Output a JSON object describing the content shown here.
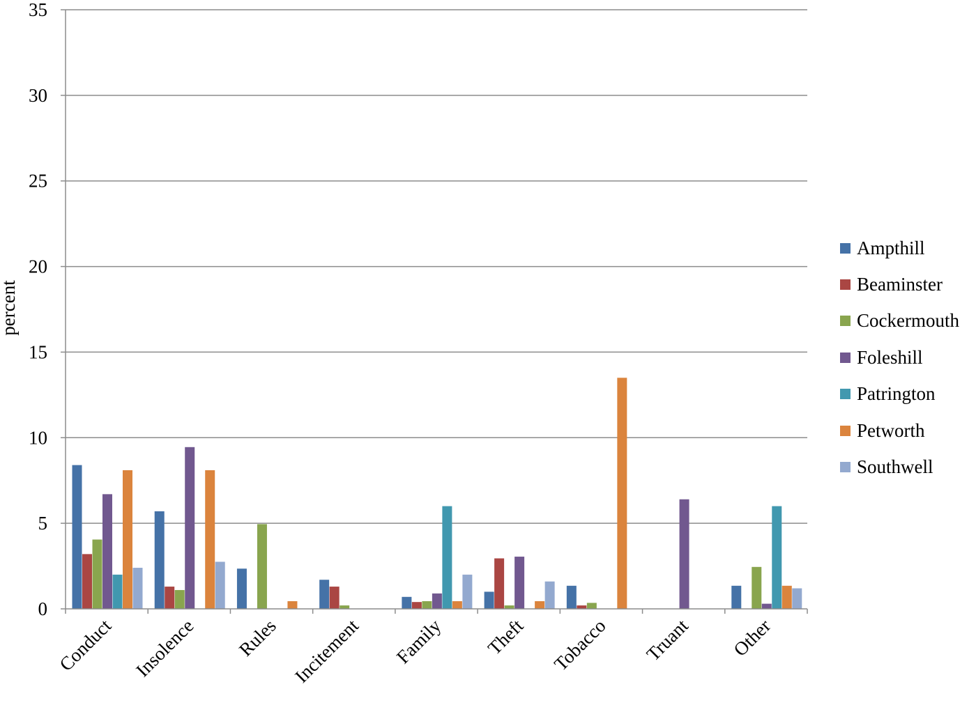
{
  "chart_data": {
    "type": "bar",
    "title": "",
    "xlabel": "",
    "ylabel": "percent",
    "ylim": [
      0,
      35
    ],
    "yticks": [
      0,
      5,
      10,
      15,
      20,
      25,
      30,
      35
    ],
    "grid": true,
    "legend_position": "right",
    "categories": [
      "Conduct",
      "Insolence",
      "Rules",
      "Incitement",
      "Family",
      "Theft",
      "Tobacco",
      "Truant",
      "Other"
    ],
    "series": [
      {
        "name": "Ampthill",
        "color": "#4572a7",
        "values": [
          8.4,
          5.7,
          2.35,
          1.7,
          0.7,
          1.0,
          1.35,
          0,
          1.35
        ]
      },
      {
        "name": "Beaminster",
        "color": "#aa4643",
        "values": [
          3.2,
          1.3,
          0,
          1.3,
          0.4,
          2.95,
          0.2,
          0,
          0
        ]
      },
      {
        "name": "Cockermouth",
        "color": "#89a54e",
        "values": [
          4.05,
          1.1,
          4.95,
          0.2,
          0.45,
          0.2,
          0.35,
          0,
          2.45
        ]
      },
      {
        "name": "Foleshill",
        "color": "#71588f",
        "values": [
          6.7,
          9.45,
          0,
          0,
          0.9,
          3.05,
          0,
          6.4,
          0.3
        ]
      },
      {
        "name": "Patrington",
        "color": "#4198af",
        "values": [
          2.0,
          0,
          0,
          0,
          6.0,
          0,
          0,
          0,
          6.0
        ]
      },
      {
        "name": "Petworth",
        "color": "#db843d",
        "values": [
          8.1,
          8.1,
          0.45,
          0,
          0.45,
          0.45,
          13.5,
          0,
          1.35
        ]
      },
      {
        "name": "Southwell",
        "color": "#93a9cf",
        "values": [
          2.4,
          2.75,
          0,
          0,
          2.0,
          1.6,
          0,
          0,
          1.2
        ]
      }
    ]
  }
}
